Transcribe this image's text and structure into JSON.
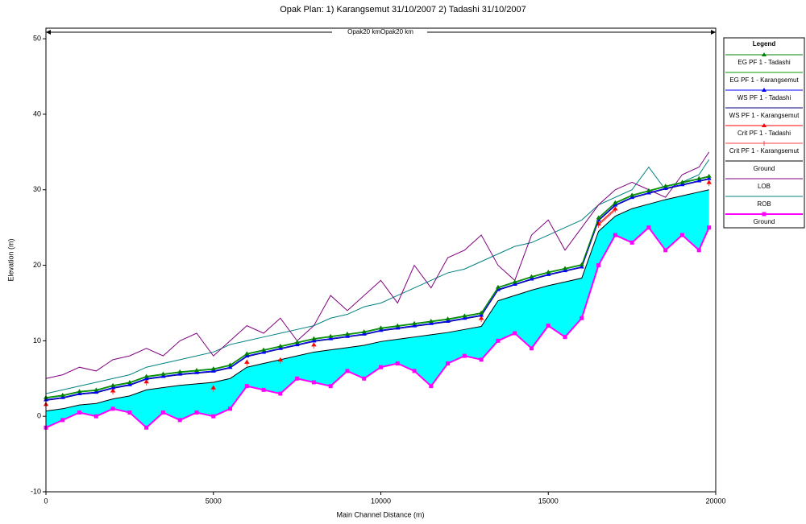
{
  "chart_data": {
    "type": "line",
    "title": "Opak     Plan:     1) Karangsemut     31/10/2007     2) Tadashi     31/10/2007",
    "annotation": "Opak20 kmOpak20 km",
    "x_label": "Main Channel Distance (m)",
    "y_label": "Elevation (m)",
    "legend_title": "Legend",
    "legend": "right",
    "fill_color": "#00ffff",
    "xlim": [
      0,
      20000
    ],
    "xticks": [
      0,
      5000,
      10000,
      15000,
      20000
    ],
    "ylim": [
      -10,
      51.4
    ],
    "yticks": [
      -10,
      0,
      10,
      20,
      30,
      40,
      50
    ],
    "x": [
      0,
      500,
      1000,
      1500,
      2000,
      2500,
      3000,
      3500,
      4000,
      4500,
      5000,
      5500,
      6000,
      6500,
      7000,
      7500,
      8000,
      8500,
      9000,
      9500,
      10000,
      10500,
      11000,
      11500,
      12000,
      12500,
      13000,
      13500,
      14000,
      14500,
      15000,
      15500,
      16000,
      16500,
      17000,
      17500,
      18000,
      18500,
      19000,
      19500,
      19800
    ],
    "series": [
      {
        "name": "EG PF 1 - Tadashi",
        "color": "#008000",
        "marker": "triangle",
        "values": [
          2.5,
          2.8,
          3.3,
          3.5,
          4.1,
          4.5,
          5.3,
          5.6,
          5.9,
          6.1,
          6.3,
          6.8,
          8.3,
          8.8,
          9.3,
          9.8,
          10.3,
          10.6,
          10.9,
          11.2,
          11.7,
          12.0,
          12.3,
          12.6,
          12.9,
          13.3,
          13.7,
          17.1,
          17.8,
          18.5,
          19.1,
          19.6,
          20.1,
          26.3,
          28.3,
          29.3,
          29.9,
          30.5,
          31.0,
          31.5,
          31.8
        ]
      },
      {
        "name": "EG PF 1 - Karangsemut",
        "color": "#00a000",
        "marker": "none",
        "values": [
          2.4,
          2.7,
          3.2,
          3.4,
          4.0,
          4.4,
          5.2,
          5.5,
          5.8,
          6.0,
          6.2,
          6.7,
          8.2,
          8.7,
          9.2,
          9.7,
          10.2,
          10.5,
          10.8,
          11.1,
          11.6,
          11.9,
          12.2,
          12.5,
          12.8,
          13.2,
          13.6,
          17.0,
          17.7,
          18.4,
          19.0,
          19.5,
          20.0,
          26.2,
          28.2,
          29.2,
          29.8,
          30.4,
          30.9,
          31.4,
          31.7
        ]
      },
      {
        "name": "WS PF 1 - Tadashi",
        "color": "#0000ff",
        "marker": "triangle",
        "values": [
          2.2,
          2.5,
          3.0,
          3.2,
          3.8,
          4.2,
          5.0,
          5.3,
          5.6,
          5.8,
          6.0,
          6.5,
          8.0,
          8.5,
          9.0,
          9.5,
          10.0,
          10.3,
          10.6,
          10.9,
          11.4,
          11.7,
          12.0,
          12.3,
          12.6,
          13.0,
          13.4,
          16.8,
          17.5,
          18.2,
          18.8,
          19.3,
          19.8,
          26.0,
          28.0,
          29.0,
          29.6,
          30.2,
          30.7,
          31.2,
          31.5
        ]
      },
      {
        "name": "WS PF 1 - Karangsemut",
        "color": "#000080",
        "marker": "none",
        "values": [
          2.1,
          2.4,
          2.9,
          3.1,
          3.7,
          4.1,
          4.9,
          5.2,
          5.5,
          5.7,
          5.9,
          6.4,
          7.9,
          8.4,
          8.9,
          9.4,
          9.9,
          10.2,
          10.5,
          10.8,
          11.3,
          11.6,
          11.9,
          12.2,
          12.5,
          12.9,
          13.3,
          16.7,
          17.4,
          18.1,
          18.7,
          19.2,
          19.7,
          25.9,
          27.9,
          28.9,
          29.5,
          30.1,
          30.6,
          31.1,
          31.4
        ]
      },
      {
        "name": "Crit PF 1 - Tadashi",
        "color": "#ff0000",
        "marker": "triangle",
        "values": [
          1.6,
          null,
          null,
          null,
          3.4,
          null,
          4.6,
          null,
          null,
          null,
          3.8,
          null,
          7.2,
          null,
          7.5,
          null,
          9.5,
          null,
          null,
          null,
          null,
          null,
          null,
          null,
          null,
          null,
          13.0,
          null,
          null,
          null,
          null,
          null,
          null,
          25.5,
          27.5,
          null,
          null,
          null,
          null,
          null,
          31.0
        ]
      },
      {
        "name": "Crit PF 1 - Karangsemut",
        "color": "#ff4040",
        "marker": "plus",
        "values": [
          1.4,
          null,
          null,
          null,
          3.2,
          null,
          4.4,
          null,
          null,
          null,
          3.6,
          null,
          7.0,
          null,
          7.3,
          null,
          9.3,
          null,
          null,
          null,
          null,
          null,
          null,
          null,
          null,
          null,
          12.8,
          null,
          null,
          null,
          null,
          null,
          null,
          25.3,
          27.3,
          null,
          null,
          null,
          null,
          null,
          30.8
        ]
      },
      {
        "name": "Ground",
        "color": "#000000",
        "marker": "none",
        "values": [
          0.7,
          1.0,
          1.5,
          1.7,
          2.3,
          2.7,
          3.5,
          3.8,
          4.1,
          4.3,
          4.5,
          5.0,
          6.5,
          7.0,
          7.5,
          8.0,
          8.5,
          8.8,
          9.1,
          9.4,
          9.9,
          10.2,
          10.5,
          10.8,
          11.1,
          11.5,
          11.9,
          15.3,
          16.0,
          16.7,
          17.3,
          17.8,
          18.3,
          24.5,
          26.5,
          27.5,
          28.1,
          28.7,
          29.2,
          29.7,
          30.0
        ]
      },
      {
        "name": "LOB",
        "color": "#800080",
        "marker": "none",
        "values": [
          5,
          5.5,
          6.5,
          6,
          7.5,
          8,
          9,
          8,
          10,
          11,
          8,
          10,
          12,
          11,
          13,
          10,
          12,
          16,
          14,
          16,
          18,
          15,
          20,
          17,
          21,
          22,
          24,
          20,
          18,
          24,
          26,
          22,
          25,
          28,
          30,
          31,
          30,
          29,
          32,
          33,
          35
        ]
      },
      {
        "name": "ROB",
        "color": "#008080",
        "marker": "none",
        "values": [
          3,
          3.5,
          4,
          4.5,
          5,
          5.5,
          6.5,
          7,
          7.5,
          8,
          8.5,
          9.5,
          10,
          10.5,
          11,
          11.5,
          12,
          13,
          13.5,
          14.5,
          15,
          16,
          17,
          18,
          19,
          19.5,
          20.5,
          21.5,
          22.5,
          23,
          24,
          25,
          26,
          28,
          29,
          30,
          33,
          30,
          31,
          32,
          34
        ]
      },
      {
        "name": "Ground",
        "color": "#ff00ff",
        "marker": "square",
        "fill_below": true,
        "values": [
          -1.5,
          -0.5,
          0.5,
          0,
          1,
          0.5,
          -1.5,
          0.5,
          -0.5,
          0.5,
          0,
          1,
          4,
          3.5,
          3,
          5,
          4.5,
          4,
          6,
          5,
          6.5,
          7,
          6,
          4,
          7,
          8,
          7.5,
          10,
          11,
          9,
          12,
          10.5,
          13,
          20,
          24,
          23,
          25,
          22,
          24,
          22,
          25
        ]
      }
    ]
  }
}
